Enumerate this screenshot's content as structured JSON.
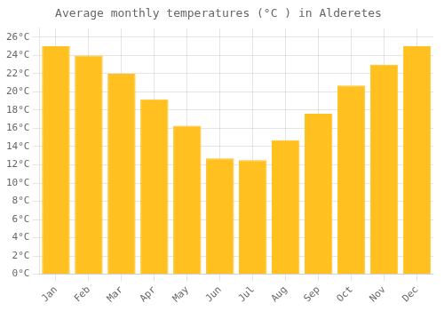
{
  "chart_data": {
    "type": "bar",
    "title": "Average monthly temperatures (°C ) in Alderetes",
    "categories": [
      "Jan",
      "Feb",
      "Mar",
      "Apr",
      "May",
      "Jun",
      "Jul",
      "Aug",
      "Sep",
      "Oct",
      "Nov",
      "Dec"
    ],
    "values": [
      25.0,
      24.0,
      22.0,
      19.2,
      16.3,
      12.7,
      12.5,
      14.7,
      17.6,
      20.7,
      23.0,
      25.0
    ],
    "color": "#FFC020",
    "ylim": [
      0,
      27
    ],
    "yticks": [
      {
        "value": 0,
        "label": "0°C"
      },
      {
        "value": 2,
        "label": "2°C"
      },
      {
        "value": 4,
        "label": "4°C"
      },
      {
        "value": 6,
        "label": "6°C"
      },
      {
        "value": 8,
        "label": "8°C"
      },
      {
        "value": 10,
        "label": "10°C"
      },
      {
        "value": 12,
        "label": "12°C"
      },
      {
        "value": 14,
        "label": "14°C"
      },
      {
        "value": 16,
        "label": "16°C"
      },
      {
        "value": 18,
        "label": "18°C"
      },
      {
        "value": 20,
        "label": "20°C"
      },
      {
        "value": 22,
        "label": "22°C"
      },
      {
        "value": 24,
        "label": "24°C"
      },
      {
        "value": 26,
        "label": "26°C"
      }
    ],
    "grid": true
  }
}
